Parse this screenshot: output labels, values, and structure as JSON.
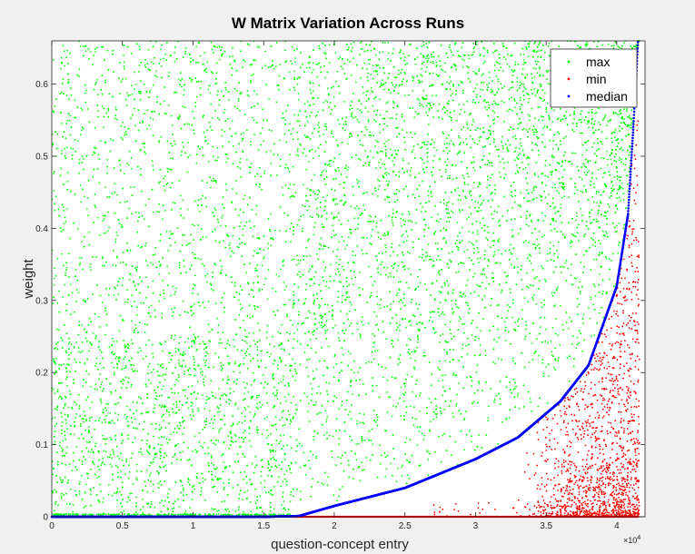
{
  "chart_data": {
    "type": "scatter",
    "title": "W Matrix Variation Across Runs",
    "xlabel": "question-concept entry",
    "ylabel": "weight",
    "xlim": [
      0,
      42000
    ],
    "ylim": [
      0,
      0.66
    ],
    "x_tick_values": [
      0,
      5000,
      10000,
      15000,
      20000,
      25000,
      30000,
      35000,
      40000
    ],
    "x_tick_labels": [
      "0",
      "0.5",
      "1",
      "1.5",
      "2",
      "2.5",
      "3",
      "3.5",
      "4"
    ],
    "x_exponent_base": "×10",
    "x_exponent_power": "4",
    "y_tick_values": [
      0,
      0.1,
      0.2,
      0.3,
      0.4,
      0.5,
      0.6
    ],
    "y_tick_labels": [
      "0",
      "0.1",
      "0.2",
      "0.3",
      "0.4",
      "0.5",
      "0.6"
    ],
    "grid": false,
    "legend_position": "top-right",
    "series": [
      {
        "name": "max",
        "color": "#00ff00",
        "description_x": "scattered across 0 to 41500 entries",
        "x": [
          500,
          1000,
          2000,
          3000,
          4000,
          5000,
          6000,
          8000,
          10000,
          12000,
          15000,
          17000,
          20000,
          22000,
          25000,
          28000,
          30000,
          33000,
          36000,
          38000,
          40000,
          41000
        ],
        "y": [
          0.15,
          0.62,
          0.08,
          0.45,
          0.1,
          0.05,
          0.3,
          0.55,
          0.2,
          0.4,
          0.25,
          0.6,
          0.35,
          0.5,
          0.45,
          0.3,
          0.55,
          0.4,
          0.6,
          0.5,
          0.62,
          0.65
        ]
      },
      {
        "name": "min",
        "color": "#ff0000",
        "x": [
          1000,
          5000,
          10000,
          15000,
          20000,
          25000,
          30000,
          35000,
          37000,
          38000,
          39000,
          40000,
          40500,
          41000,
          41200,
          41400
        ],
        "y": [
          0,
          0,
          0,
          0,
          0,
          0,
          0,
          0.01,
          0.02,
          0.03,
          0.05,
          0.08,
          0.1,
          0.15,
          0.3,
          0.5
        ]
      },
      {
        "name": "median",
        "color": "#0000ff",
        "x": [
          0,
          5000,
          10000,
          15000,
          17500,
          20000,
          25000,
          30000,
          33000,
          36000,
          38000,
          40000,
          40800,
          41200,
          41500
        ],
        "y": [
          0,
          0,
          0,
          0,
          0.001,
          0.015,
          0.04,
          0.08,
          0.11,
          0.16,
          0.21,
          0.32,
          0.42,
          0.55,
          0.66
        ]
      }
    ]
  }
}
